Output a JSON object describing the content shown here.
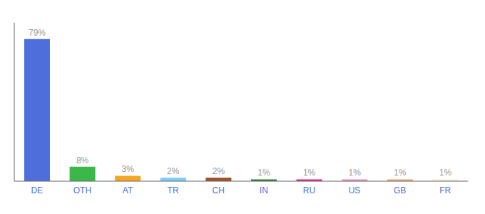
{
  "chart_data": {
    "type": "bar",
    "categories": [
      "DE",
      "OTH",
      "AT",
      "TR",
      "CH",
      "IN",
      "RU",
      "US",
      "GB",
      "FR"
    ],
    "values": [
      79,
      8,
      3,
      2,
      2,
      1,
      1,
      1,
      1,
      1
    ],
    "value_labels": [
      "79%",
      "8%",
      "3%",
      "2%",
      "2%",
      "1%",
      "1%",
      "1%",
      "1%",
      "1%"
    ],
    "colors": [
      "#4e6fdb",
      "#3cb84a",
      "#f5a623",
      "#7ecff5",
      "#a0522d",
      "#2e7d32",
      "#e91e8c",
      "#f48fb1",
      "#f4a07a",
      "#f5f0d0"
    ],
    "ylim": [
      0,
      88
    ],
    "data_labels": true,
    "tick_labels": "x",
    "grid": false
  }
}
